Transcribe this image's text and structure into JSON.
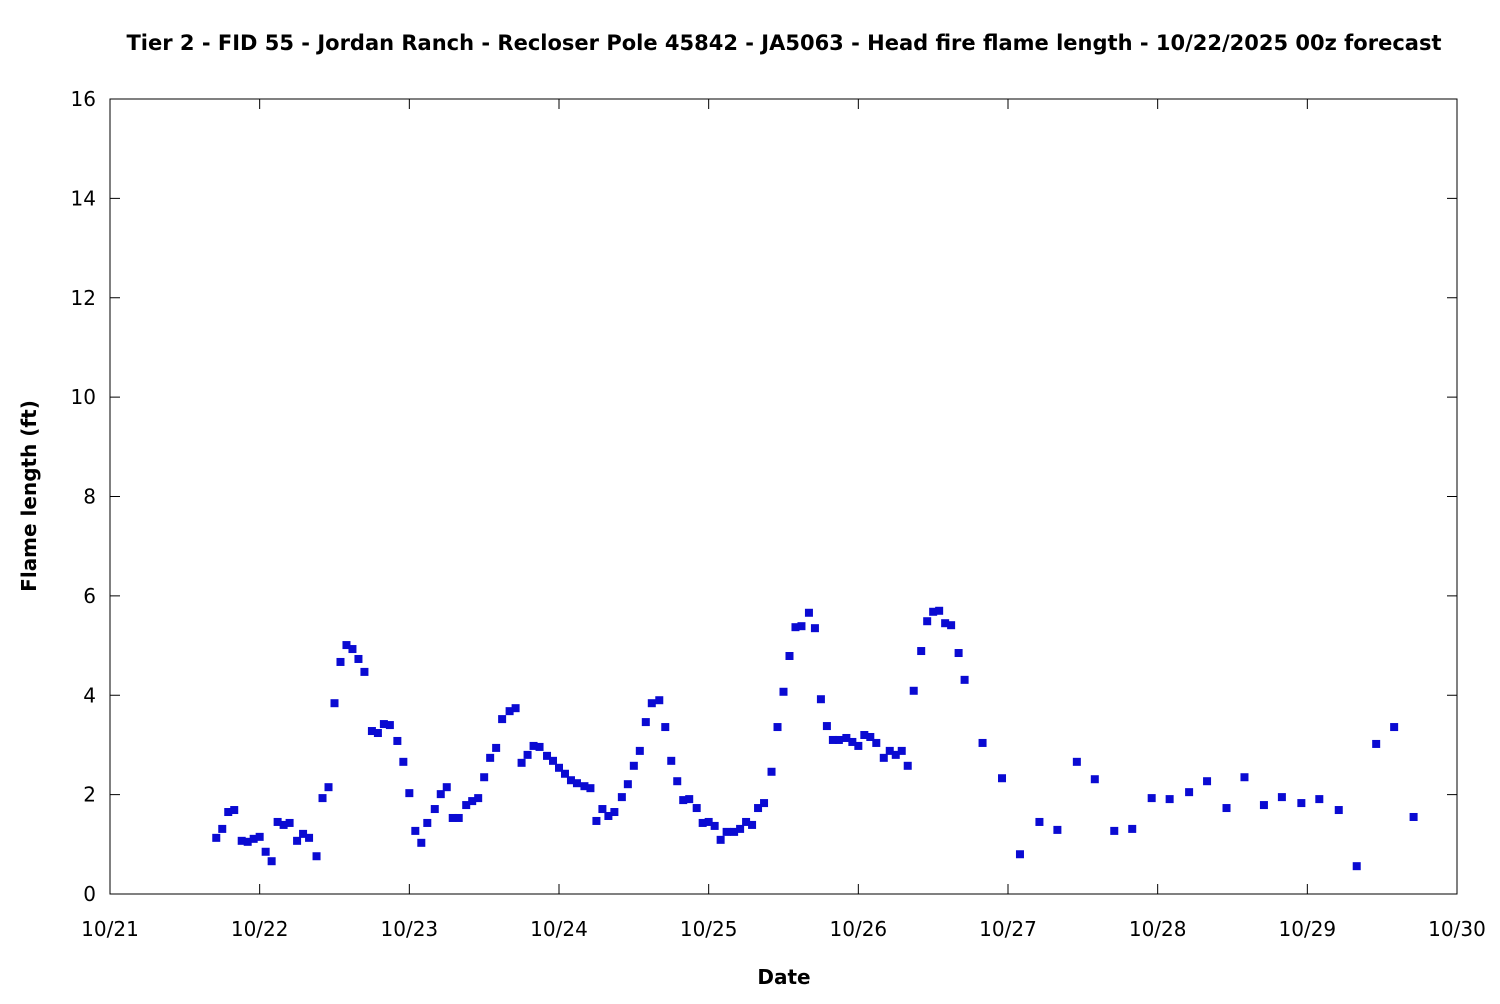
{
  "chart_data": {
    "type": "scatter",
    "title": "Tier 2 - FID 55 - Jordan Ranch - Recloser Pole 45842 - JA5063 - Head fire flame length - 10/22/2025 00z forecast",
    "x_label": "Date",
    "y_label": "Flame length (ft)",
    "xlim": [
      0,
      9
    ],
    "xticks": [
      {
        "value": 0,
        "label": "10/21"
      },
      {
        "value": 1,
        "label": "10/22"
      },
      {
        "value": 2,
        "label": "10/23"
      },
      {
        "value": 3,
        "label": "10/24"
      },
      {
        "value": 4,
        "label": "10/25"
      },
      {
        "value": 5,
        "label": "10/26"
      },
      {
        "value": 6,
        "label": "10/27"
      },
      {
        "value": 7,
        "label": "10/28"
      },
      {
        "value": 8,
        "label": "10/29"
      },
      {
        "value": 9,
        "label": "10/30"
      }
    ],
    "ylim": [
      0,
      16
    ],
    "yticks": [
      0,
      2,
      4,
      6,
      8,
      10,
      12,
      14,
      16
    ],
    "color": "#0a0ad2",
    "x": [
      0.71,
      0.75,
      0.79,
      0.83,
      0.88,
      0.92,
      0.96,
      1.0,
      1.04,
      1.08,
      1.12,
      1.16,
      1.2,
      1.25,
      1.29,
      1.33,
      1.38,
      1.42,
      1.46,
      1.5,
      1.54,
      1.58,
      1.62,
      1.66,
      1.7,
      1.75,
      1.79,
      1.83,
      1.87,
      1.92,
      1.96,
      2.0,
      2.04,
      2.08,
      2.12,
      2.17,
      2.21,
      2.25,
      2.29,
      2.33,
      2.38,
      2.42,
      2.46,
      2.5,
      2.54,
      2.58,
      2.62,
      2.67,
      2.71,
      2.75,
      2.79,
      2.83,
      2.87,
      2.92,
      2.96,
      3.0,
      3.04,
      3.08,
      3.12,
      3.17,
      3.21,
      3.25,
      3.29,
      3.33,
      3.37,
      3.42,
      3.46,
      3.5,
      3.54,
      3.58,
      3.62,
      3.67,
      3.71,
      3.75,
      3.79,
      3.83,
      3.87,
      3.92,
      3.96,
      4.0,
      4.04,
      4.08,
      4.12,
      4.17,
      4.21,
      4.25,
      4.29,
      4.33,
      4.37,
      4.42,
      4.46,
      4.5,
      4.54,
      4.58,
      4.62,
      4.67,
      4.71,
      4.75,
      4.79,
      4.83,
      4.87,
      4.92,
      4.96,
      5.0,
      5.04,
      5.08,
      5.12,
      5.17,
      5.21,
      5.25,
      5.29,
      5.33,
      5.37,
      5.42,
      5.46,
      5.5,
      5.54,
      5.58,
      5.62,
      5.67,
      5.71,
      5.83,
      5.96,
      6.08,
      6.21,
      6.33,
      6.46,
      6.58,
      6.71,
      6.83,
      6.96,
      7.08,
      7.21,
      7.33,
      7.46,
      7.58,
      7.71,
      7.83,
      7.96,
      8.08,
      8.21,
      8.33,
      8.46,
      8.58,
      8.71
    ],
    "values": [
      1.13,
      1.31,
      1.65,
      1.69,
      1.07,
      1.05,
      1.11,
      1.15,
      0.85,
      0.66,
      1.45,
      1.39,
      1.43,
      1.07,
      1.21,
      1.13,
      0.76,
      1.93,
      2.15,
      3.84,
      4.67,
      5.01,
      4.93,
      4.73,
      4.47,
      3.28,
      3.24,
      3.42,
      3.4,
      3.08,
      2.66,
      2.03,
      1.27,
      1.03,
      1.43,
      1.71,
      2.01,
      2.15,
      1.53,
      1.53,
      1.79,
      1.87,
      1.93,
      2.35,
      2.74,
      2.94,
      3.52,
      3.68,
      3.74,
      2.64,
      2.8,
      2.98,
      2.96,
      2.78,
      2.68,
      2.54,
      2.42,
      2.29,
      2.23,
      2.17,
      2.13,
      1.47,
      1.71,
      1.57,
      1.65,
      1.95,
      2.21,
      2.58,
      2.88,
      3.46,
      3.84,
      3.9,
      3.36,
      2.68,
      2.27,
      1.89,
      1.91,
      1.73,
      1.43,
      1.45,
      1.37,
      1.09,
      1.25,
      1.25,
      1.31,
      1.45,
      1.39,
      1.73,
      1.83,
      2.46,
      3.36,
      4.07,
      4.79,
      5.37,
      5.39,
      5.66,
      5.35,
      3.92,
      3.38,
      3.1,
      3.1,
      3.14,
      3.06,
      2.98,
      3.2,
      3.16,
      3.04,
      2.74,
      2.88,
      2.8,
      2.88,
      2.58,
      4.09,
      4.89,
      5.49,
      5.68,
      5.7,
      5.45,
      5.41,
      4.85,
      4.31,
      3.04,
      2.33,
      0.8,
      1.45,
      1.29,
      2.66,
      2.31,
      1.27,
      1.31,
      1.93,
      1.91,
      2.05,
      2.27,
      1.73,
      2.35,
      1.79,
      1.95,
      1.83,
      1.91,
      1.69,
      0.56,
      3.02,
      3.36,
      1.55
    ]
  }
}
